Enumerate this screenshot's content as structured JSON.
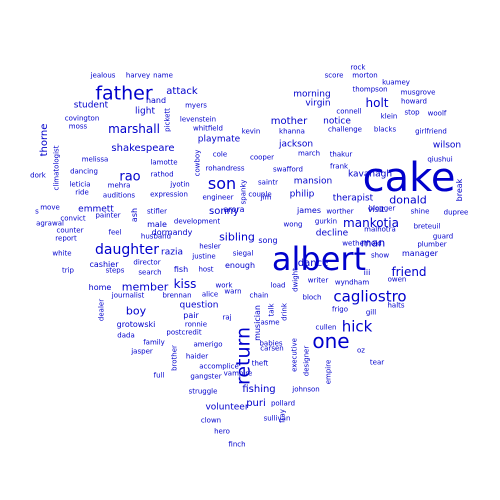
{
  "color": "#0000cc",
  "words": [
    "cake",
    "albert",
    "father",
    "one",
    "return",
    "son",
    "cagliostro",
    "hick",
    "daughter",
    "rao",
    "mankotia",
    "holt",
    "marshall",
    "friend",
    "kiss",
    "sibling",
    "donald",
    "man",
    "boy",
    "member",
    "attack",
    "mother",
    "puri",
    "fishing",
    "shakespeare",
    "thorne",
    "sonny",
    "dance",
    "volunteer",
    "kavanagh",
    "mansion",
    "therapist",
    "jackson",
    "philip",
    "wilson",
    "virgin",
    "morning",
    "notice",
    "emmett",
    "decline",
    "student",
    "playmate",
    "question",
    "arora",
    "light",
    "hand",
    "cashier",
    "razia",
    "song",
    "james",
    "home",
    "pair",
    "enough",
    "manager",
    "fish",
    "visit",
    "break",
    "grotowski",
    "dormandy",
    "male",
    "musician",
    "empire",
    "iii",
    "shine",
    "gurkin",
    "executive",
    "frigo",
    "brother",
    "halts",
    "gangster",
    "jasper",
    "haider",
    "kevin",
    "khanna",
    "challenge",
    "blacks",
    "girlfriend",
    "howard",
    "musgrove",
    "kuamey",
    "thompson",
    "connell",
    "stop",
    "woolf",
    "klein",
    "score",
    "morton",
    "rock",
    "jealous",
    "harvey",
    "name",
    "myers",
    "levenstein",
    "whitfield",
    "pickett",
    "spanky",
    "covington",
    "raymond",
    "moss",
    "melissa",
    "dancing",
    "climatologist",
    "dork",
    "leticia",
    "mehra",
    "lamotte",
    "rathod",
    "cowboy",
    "jyotin",
    "expression",
    "auditions",
    "ride",
    "painter",
    "agrawal",
    "convict",
    "counter",
    "feel",
    "report",
    "white",
    "trip",
    "steps",
    "search",
    "director",
    "husband",
    "stifler",
    "engineer",
    "development",
    "host",
    "hesler",
    "justine",
    "siegal",
    "alice",
    "work",
    "warn",
    "chain",
    "load",
    "raj",
    "ronnie",
    "postcredit",
    "dada",
    "family",
    "amerigo",
    "accomplice",
    "full",
    "struggle",
    "theft",
    "vampire",
    "talk",
    "dwight",
    "drink",
    "asme",
    "cullen",
    "bloch",
    "owen",
    "plumber",
    "guard",
    "dupree",
    "breteuil",
    "malhotra",
    "blogger",
    "show",
    "wetherhold",
    "worther",
    "wong",
    "couple",
    "jim",
    "saintr",
    "swafford",
    "cooper",
    "cole",
    "rohandress",
    "frank",
    "march",
    "thakur",
    "qiushui",
    "writer",
    "wyndham",
    "gill",
    "oz",
    "tear",
    "designer",
    "johnson",
    "carsen",
    "babies",
    "pollard",
    "sullivan",
    "clown",
    "hero",
    "finch",
    "ash",
    "move",
    "s",
    "fray",
    "journalist",
    "brennan",
    "dealer",
    "cameo"
  ]
}
